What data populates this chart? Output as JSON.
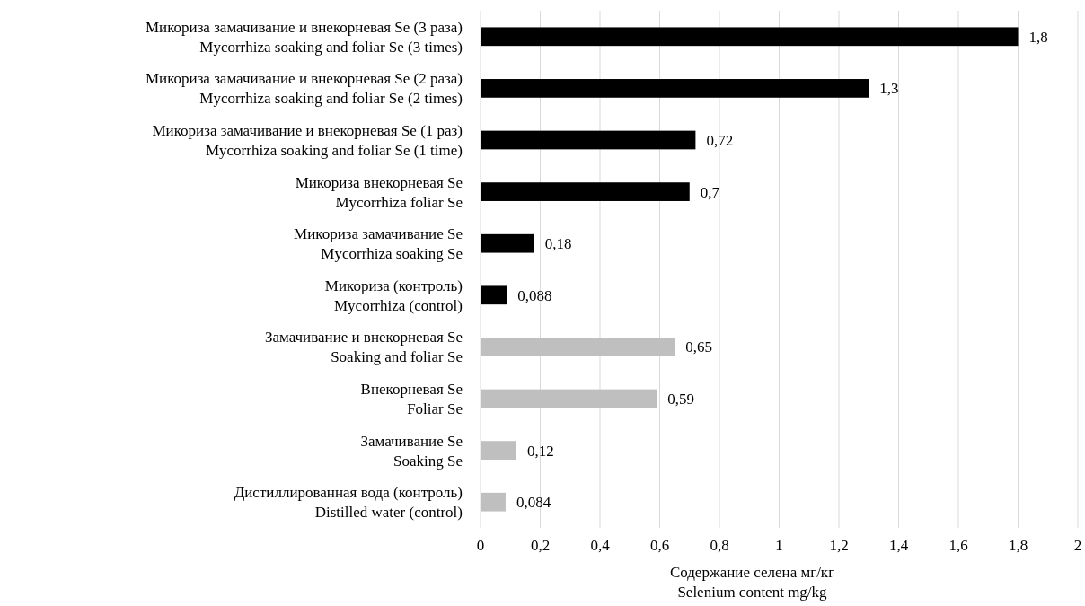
{
  "chart_data": {
    "type": "bar",
    "orientation": "horizontal",
    "categories": [
      "Микориза замачивание и внекорневая Se (3 раза)\nMycorrhiza soaking and foliar Se (3 times)",
      "Микориза замачивание и внекорневая Se (2 раза)\nMycorrhiza soaking and foliar Se (2 times)",
      "Микориза замачивание и внекорневая Se (1 раз)\nMycorrhiza soaking and foliar Se (1 time)",
      "Микориза внекорневая Se\nMycorrhiza foliar Se",
      "Микориза замачивание Se\nMycorrhiza soaking Se",
      "Микориза (контроль)\nMycorrhiza (control)",
      "Замачивание и внекорневая Se\nSoaking and foliar Se",
      "Внекорневая Se\nFoliar Se",
      "Замачивание Se\nSoaking Se",
      "Дистиллированная вода (контроль)\nDistilled water (control)"
    ],
    "values": [
      1.8,
      1.3,
      0.72,
      0.7,
      0.18,
      0.088,
      0.65,
      0.59,
      0.12,
      0.084
    ],
    "colors": [
      "#000000",
      "#000000",
      "#000000",
      "#000000",
      "#000000",
      "#000000",
      "#bfbfbf",
      "#bfbfbf",
      "#bfbfbf",
      "#bfbfbf"
    ],
    "value_labels": [
      "1,8",
      "1,3",
      "0,72",
      "0,7",
      "0,18",
      "0,088",
      "0,65",
      "0,59",
      "0,12",
      "0,084"
    ],
    "xlabel": "Содержание селена мг/кг\nSelenium content mg/kg",
    "xlim": [
      0,
      2
    ],
    "xticks": [
      0,
      {
        "value": 0.2,
        "label": "0,2"
      },
      {
        "value": 0.4,
        "label": "0,4"
      },
      {
        "value": 0.6,
        "label": "0,6"
      },
      {
        "value": 0.8,
        "label": "0,8"
      },
      1,
      {
        "value": 1.2,
        "label": "1,2"
      },
      {
        "value": 1.4,
        "label": "1,4"
      },
      {
        "value": 1.6,
        "label": "1,6"
      },
      {
        "value": 1.8,
        "label": "1,8"
      },
      2
    ],
    "grid": "x"
  }
}
